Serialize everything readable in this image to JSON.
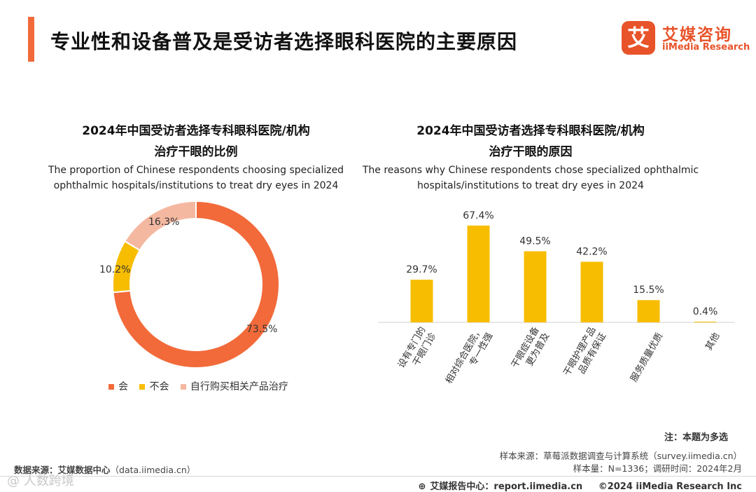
{
  "header": {
    "title": "专业性和设备普及是受访者选择眼科医院的主要原因",
    "logo_mark": "艾",
    "logo_cn": "艾媒咨询",
    "logo_en": "iiMedia Research"
  },
  "chart_data": [
    {
      "type": "pie",
      "title_cn_line1": "2024年中国受访者选择专科眼科医院/机构",
      "title_cn_line2": "治疗干眼的比例",
      "title_en_line1": "The proportion of Chinese respondents choosing specialized",
      "title_en_line2": "ophthalmic hospitals/institutions to treat dry eyes in 2024",
      "labels": [
        "会",
        "不会",
        "自行购买相关产品治疗"
      ],
      "values": [
        73.5,
        10.2,
        16.3
      ],
      "value_labels": [
        "73.5%",
        "10.2%",
        "16.3%"
      ],
      "colors": [
        "#f26a3a",
        "#f7bd00",
        "#f4b8a0"
      ],
      "donut": true
    },
    {
      "type": "bar",
      "title_cn_line1": "2024年中国受访者选择专科眼科医院/机构",
      "title_cn_line2": "治疗干眼的原因",
      "title_en_line1": "The reasons why Chinese respondents chose specialized ophthalmic",
      "title_en_line2": "hospitals/institutions to treat dry eyes in 2024",
      "categories": [
        [
          "设有专门的",
          "干眼门诊"
        ],
        [
          "相对综合医院，",
          "专一性强"
        ],
        [
          "干眼症设备",
          "更为普及"
        ],
        [
          "干眼护理产品",
          "品质有保证"
        ],
        [
          "服务质量优质"
        ],
        [
          "其他"
        ]
      ],
      "values": [
        29.7,
        67.4,
        49.5,
        42.2,
        15.5,
        0.4
      ],
      "value_labels": [
        "29.7%",
        "67.4%",
        "49.5%",
        "42.2%",
        "15.5%",
        "0.4%"
      ],
      "color": "#f7bd00",
      "ylim": [
        0,
        100
      ]
    }
  ],
  "footer": {
    "note": "注：本题为多选",
    "sample_source": "样本来源：草莓派数据调查与计算系统（survey.iimedia.cn）",
    "sample_size": "样本量：N=1336；调研时间：2024年2月",
    "data_source_label": "数据来源：艾媒数据中心",
    "data_source_url": "（data.iimedia.cn）",
    "report_center": "艾媒报告中心：report.iimedia.cn",
    "copyright": "©2024  iiMedia Research  Inc",
    "watermark": "@ 人数跨境"
  }
}
